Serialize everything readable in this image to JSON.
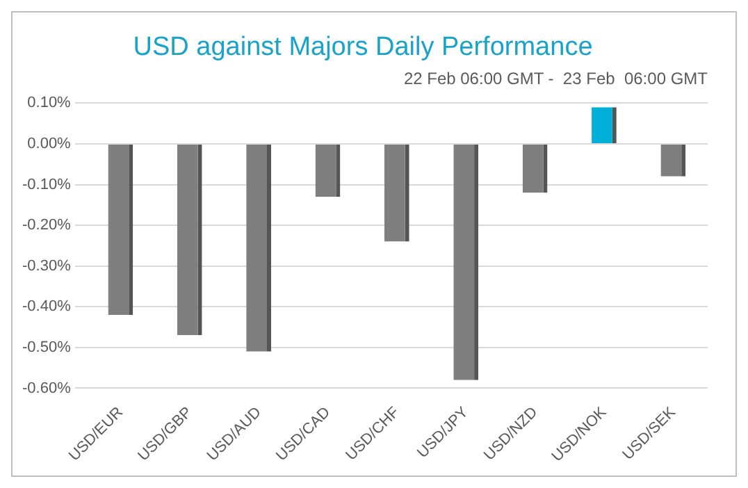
{
  "chart_data": {
    "type": "bar",
    "title": "USD against Majors Daily Performance",
    "subtitle": "22 Feb 06:00 GMT -  23 Feb  06:00 GMT",
    "categories": [
      "USD/EUR",
      "USD/GBP",
      "USD/AUD",
      "USD/CAD",
      "USD/CHF",
      "USD/JPY",
      "USD/NZD",
      "USD/NOK",
      "USD/SEK"
    ],
    "values": [
      -0.42,
      -0.47,
      -0.51,
      -0.13,
      -0.24,
      -0.58,
      -0.12,
      0.09,
      -0.08
    ],
    "colors": [
      "#7f7f7f",
      "#7f7f7f",
      "#7f7f7f",
      "#7f7f7f",
      "#7f7f7f",
      "#7f7f7f",
      "#7f7f7f",
      "#00b0d8",
      "#7f7f7f"
    ],
    "ylim": [
      -0.6,
      0.1
    ],
    "yticks": [
      {
        "value": 0.1,
        "label": "0.10%"
      },
      {
        "value": 0,
        "label": "0.00%"
      },
      {
        "value": -0.1,
        "label": "-0.10%"
      },
      {
        "value": -0.2,
        "label": "-0.20%"
      },
      {
        "value": -0.3,
        "label": "-0.30%"
      },
      {
        "value": -0.4,
        "label": "-0.40%"
      },
      {
        "value": -0.5,
        "label": "-0.50%"
      },
      {
        "value": -0.6,
        "label": "-0.60%"
      }
    ],
    "grid": "y",
    "legend": false
  }
}
